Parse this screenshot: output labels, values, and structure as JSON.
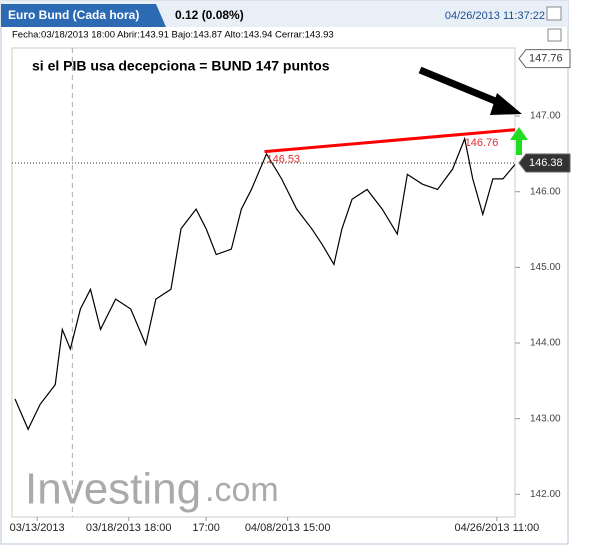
{
  "chart_data": {
    "type": "line",
    "title": "Euro Bund (Cada hora)",
    "change": "0.12 (0.08%)",
    "timestamp": "04/26/2013 11:37:22",
    "info": "Fecha:03/18/2013 18:00 Abrir:143.91 Bajo:143.87 Alto:143.94 Cerrar:143.93",
    "annotation": "si el PIB usa decepciona  = BUND 147 puntos",
    "logo": [
      "Investing",
      ".com"
    ],
    "xlim": [
      0,
      500
    ],
    "ylim": [
      141.7,
      147.9
    ],
    "yticks": [
      {
        "value": 142,
        "label": "142.00"
      },
      {
        "value": 143,
        "label": "143.00"
      },
      {
        "value": 144,
        "label": "144.00"
      },
      {
        "value": 145,
        "label": "145.00"
      },
      {
        "value": 146,
        "label": "146.00"
      },
      {
        "value": 147,
        "label": "147.00"
      }
    ],
    "xticks": [
      {
        "value": 25,
        "label": "03/13/2013"
      },
      {
        "value": 116,
        "label": "03/18/2013 18:00"
      },
      {
        "value": 193,
        "label": "17:00"
      },
      {
        "value": 274,
        "label": "04/08/2013 15:00"
      },
      {
        "value": 482,
        "label": "04/26/2013 11:00"
      }
    ],
    "series": [
      {
        "name": "Euro Bund",
        "color": "#000000",
        "x": [
          3,
          16,
          28,
          43,
          50,
          58,
          68,
          78,
          88,
          103,
          118,
          133,
          143,
          158,
          168,
          183,
          193,
          203,
          218,
          228,
          238,
          253,
          268,
          283,
          298,
          308,
          320,
          328,
          338,
          353,
          368,
          383,
          393,
          408,
          423,
          438,
          450,
          458,
          468,
          478,
          488,
          500
        ],
        "values": [
          143.26,
          142.86,
          143.19,
          143.45,
          144.18,
          143.92,
          144.45,
          144.71,
          144.18,
          144.58,
          144.45,
          143.98,
          144.58,
          144.71,
          145.51,
          145.77,
          145.51,
          145.17,
          145.24,
          145.77,
          146.03,
          146.5,
          146.17,
          145.77,
          145.51,
          145.31,
          145.04,
          145.51,
          145.9,
          146.03,
          145.77,
          145.44,
          146.23,
          146.1,
          146.03,
          146.3,
          146.7,
          146.17,
          145.7,
          146.17,
          146.17,
          146.36
        ]
      }
    ],
    "trendline": {
      "color": "#ff0000",
      "x": [
        251,
        500
      ],
      "values": [
        146.53,
        146.82
      ]
    },
    "peaks": [
      {
        "x": 251,
        "value": 146.53
      },
      {
        "x": 448,
        "value": 146.76
      }
    ],
    "price_boxes": [
      147.76,
      146.38
    ],
    "crosshair_x": 60
  }
}
